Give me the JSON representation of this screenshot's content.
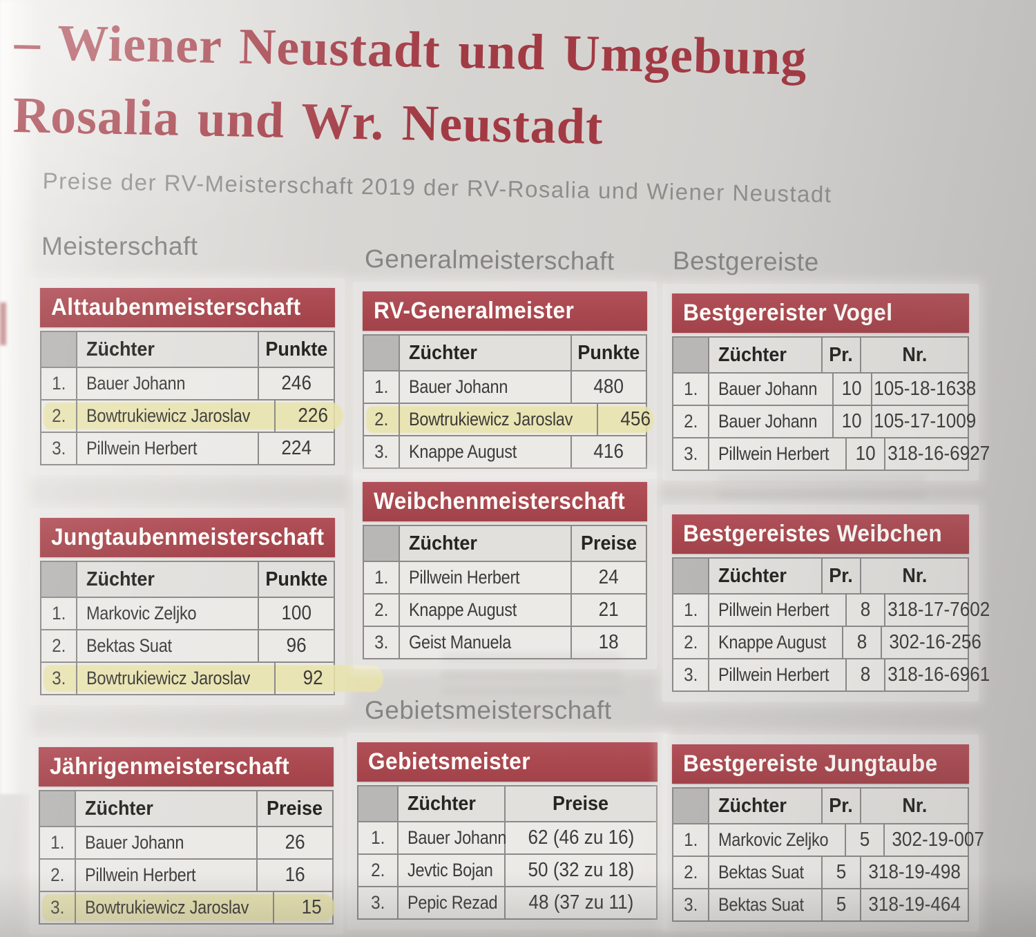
{
  "header": {
    "title_line1": "– Wiener Neustadt und Umgebung",
    "title_line2": "Rosalia und Wr. Neustadt",
    "subtitle": "Preise der RV-Meisterschaft 2019 der RV-Rosalia und Wiener Neustadt"
  },
  "sections": {
    "meisterschaft": "Meisterschaft",
    "generalmeisterschaft": "Generalmeisterschaft",
    "bestgereiste": "Bestgereiste",
    "gebietsmeisterschaft": "Gebietsmeisterschaft"
  },
  "colors": {
    "title_red": "#a23a44",
    "bar_red": "#ab4950",
    "highlight": "#e9e3ab",
    "border": "#8b8a88",
    "corner_cell": "#b9b7b5",
    "header_cell": "#e2e0dd",
    "data_cell": "#eceae7"
  },
  "tables": [
    {
      "id": "alttauben",
      "title": "Alttaubenmeisterschaft",
      "columns": [
        "Züchter",
        "Punkte"
      ],
      "rows": [
        {
          "rank": "1.",
          "cells": [
            "Bauer Johann",
            "246"
          ],
          "highlight": false
        },
        {
          "rank": "2.",
          "cells": [
            "Bowtrukiewicz Jaroslav",
            "226"
          ],
          "highlight": true,
          "extend": 14
        },
        {
          "rank": "3.",
          "cells": [
            "Pillwein Herbert",
            "224"
          ],
          "highlight": false
        }
      ]
    },
    {
      "id": "jungtauben",
      "title": "Jungtaubenmeisterschaft",
      "columns": [
        "Züchter",
        "Punkte"
      ],
      "rows": [
        {
          "rank": "1.",
          "cells": [
            "Markovic Zeljko",
            "100"
          ],
          "highlight": false
        },
        {
          "rank": "2.",
          "cells": [
            "Bektas Suat",
            "96"
          ],
          "highlight": false
        },
        {
          "rank": "3.",
          "cells": [
            "Bowtrukiewicz Jaroslav",
            "92"
          ],
          "highlight": true,
          "extend": 72
        }
      ]
    },
    {
      "id": "jaehrigen",
      "title": "Jährigenmeisterschaft",
      "columns": [
        "Züchter",
        "Preise"
      ],
      "rows": [
        {
          "rank": "1.",
          "cells": [
            "Bauer Johann",
            "26"
          ],
          "highlight": false
        },
        {
          "rank": "2.",
          "cells": [
            "Pillwein Herbert",
            "16"
          ],
          "highlight": false
        },
        {
          "rank": "3.",
          "cells": [
            "Bowtrukiewicz Jaroslav",
            "15"
          ],
          "highlight": true,
          "extend": 4
        }
      ]
    },
    {
      "id": "rvgeneral",
      "title": "RV-Generalmeister",
      "columns": [
        "Züchter",
        "Punkte"
      ],
      "rows": [
        {
          "rank": "1.",
          "cells": [
            "Bauer Johann",
            "480"
          ],
          "highlight": false
        },
        {
          "rank": "2.",
          "cells": [
            "Bowtrukiewicz Jaroslav",
            "456"
          ],
          "highlight": true,
          "extend": 12
        },
        {
          "rank": "3.",
          "cells": [
            "Knappe August",
            "416"
          ],
          "highlight": false
        }
      ]
    },
    {
      "id": "weibchen",
      "title": "Weibchenmeisterschaft",
      "columns": [
        "Züchter",
        "Preise"
      ],
      "rows": [
        {
          "rank": "1.",
          "cells": [
            "Pillwein Herbert",
            "24"
          ],
          "highlight": false
        },
        {
          "rank": "2.",
          "cells": [
            "Knappe August",
            "21"
          ],
          "highlight": false
        },
        {
          "rank": "3.",
          "cells": [
            "Geist Manuela",
            "18"
          ],
          "highlight": false
        }
      ]
    },
    {
      "id": "gebietsmeister",
      "title": "Gebietsmeister",
      "columns": [
        "Züchter",
        "Preise"
      ],
      "rows": [
        {
          "rank": "1.",
          "cells": [
            "Bauer Johann",
            "62 (46 zu 16)"
          ],
          "highlight": false
        },
        {
          "rank": "2.",
          "cells": [
            "Jevtic Bojan",
            "50 (32 zu 18)"
          ],
          "highlight": false
        },
        {
          "rank": "3.",
          "cells": [
            "Pepic Rezad",
            "48 (37 zu 11)"
          ],
          "highlight": false
        }
      ]
    },
    {
      "id": "bestvogel",
      "title": "Bestgereister Vogel",
      "columns": [
        "Züchter",
        "Pr.",
        "Nr."
      ],
      "rows": [
        {
          "rank": "1.",
          "cells": [
            "Bauer Johann",
            "10",
            "105-18-1638"
          ],
          "highlight": false
        },
        {
          "rank": "2.",
          "cells": [
            "Bauer Johann",
            "10",
            "105-17-1009"
          ],
          "highlight": false
        },
        {
          "rank": "3.",
          "cells": [
            "Pillwein Herbert",
            "10",
            "318-16-6927"
          ],
          "highlight": false
        }
      ]
    },
    {
      "id": "bestweibchen",
      "title": "Bestgereistes Weibchen",
      "columns": [
        "Züchter",
        "Pr.",
        "Nr."
      ],
      "rows": [
        {
          "rank": "1.",
          "cells": [
            "Pillwein Herbert",
            "8",
            "318-17-7602"
          ],
          "highlight": false
        },
        {
          "rank": "2.",
          "cells": [
            "Knappe August",
            "8",
            "302-16-256"
          ],
          "highlight": false
        },
        {
          "rank": "3.",
          "cells": [
            "Pillwein Herbert",
            "8",
            "318-16-6961"
          ],
          "highlight": false
        }
      ]
    },
    {
      "id": "bestjungtaube",
      "title": "Bestgereiste Jungtaube",
      "columns": [
        "Züchter",
        "Pr.",
        "Nr."
      ],
      "rows": [
        {
          "rank": "1.",
          "cells": [
            "Markovic Zeljko",
            "5",
            "302-19-007"
          ],
          "highlight": false
        },
        {
          "rank": "2.",
          "cells": [
            "Bektas Suat",
            "5",
            "318-19-498"
          ],
          "highlight": false
        },
        {
          "rank": "3.",
          "cells": [
            "Bektas Suat",
            "5",
            "318-19-464"
          ],
          "highlight": false
        }
      ]
    }
  ]
}
